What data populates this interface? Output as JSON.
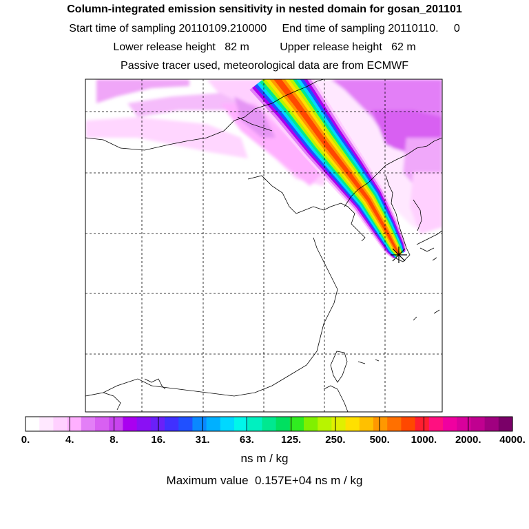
{
  "header": {
    "title": "Column-integrated emission sensitivity in nested domain for gosan_201101",
    "line2": "Start time of sampling 20110109.210000     End time of sampling 20110110.     0",
    "line3": "Lower release height   82 m          Upper release height   62 m",
    "line4": "Passive tracer used, meteorological data are from ECMWF"
  },
  "colorbar": {
    "colors": [
      "#ffffff",
      "#ffe8ff",
      "#ffd0ff",
      "#ffb0ff",
      "#e37ff7",
      "#d860f2",
      "#c844ee",
      "#aa00f0",
      "#8a10f4",
      "#6a20f8",
      "#4030ff",
      "#2050ff",
      "#0a88ff",
      "#00b0ff",
      "#00d8ff",
      "#00f6ea",
      "#00f0c0",
      "#00e890",
      "#00e060",
      "#30ec20",
      "#80f000",
      "#b8f400",
      "#e0f000",
      "#ffe000",
      "#ffc000",
      "#ff9800",
      "#ff7000",
      "#ff4800",
      "#ff1e30",
      "#ff1080",
      "#f000a0",
      "#d8009c",
      "#c00090",
      "#a00080",
      "#7a0068"
    ],
    "ticks": [
      "0.",
      "4.",
      "8.",
      "16.",
      "31.",
      "63.",
      "125.",
      "250.",
      "500.",
      "1000.",
      "2000.",
      "4000."
    ],
    "unit": "ns m / kg"
  },
  "footer": {
    "max_label": "Maximum value  0.157E+04 ns m / kg"
  },
  "map": {
    "receptor": "gosan station (asterisk marker)",
    "plume_colors": [
      "#ffd0ff",
      "#e37ff7",
      "#aa00f0",
      "#2050ff",
      "#00d8ff",
      "#00e890",
      "#b8f400",
      "#ffe000",
      "#ff9800",
      "#ff4800"
    ]
  }
}
